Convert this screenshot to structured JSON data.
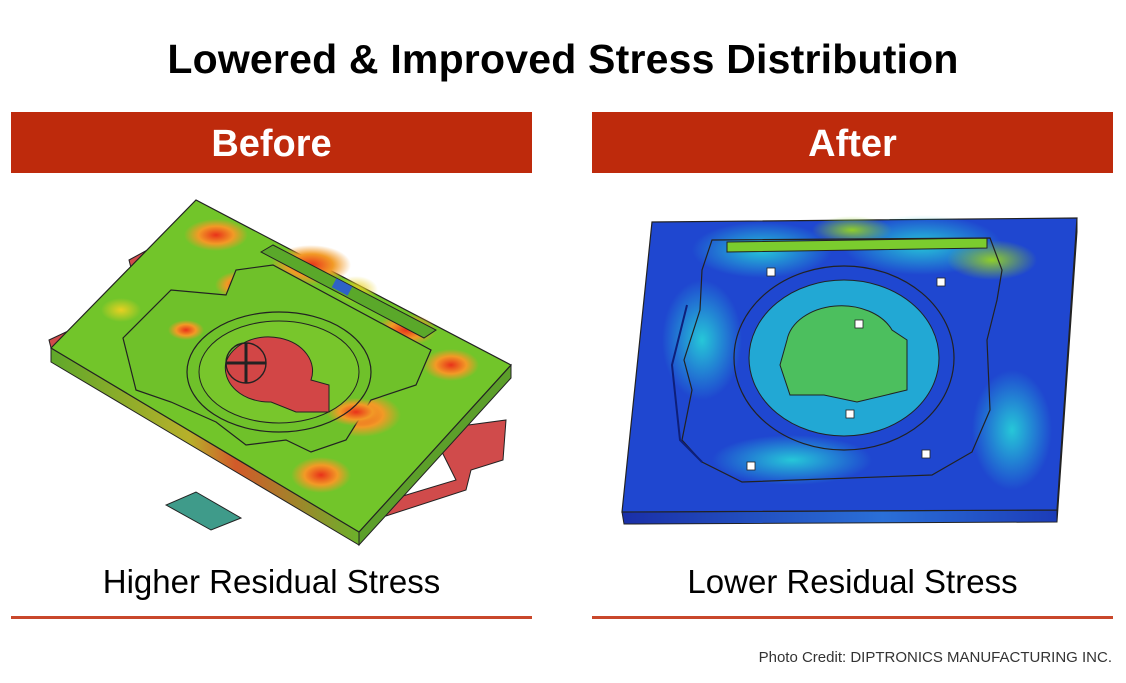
{
  "title": "Lowered & Improved Stress Distribution",
  "panels": [
    {
      "heading": "Before",
      "caption": "Higher Residual Stress",
      "image": "stress-plot-before-part"
    },
    {
      "heading": "After",
      "caption": "Lower Residual Stress",
      "image": "stress-plot-after-part"
    }
  ],
  "credit": "Photo Credit: DIPTRONICS MANUFACTURING INC.",
  "colors": {
    "banner": "#be2a0c",
    "rule": "#c9472b",
    "high_stress": "#e23a1c",
    "mid_stress": "#66cc22",
    "low_stress": "#1f3fc8"
  }
}
